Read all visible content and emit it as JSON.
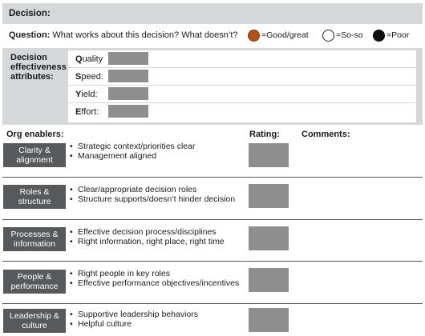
{
  "decision": {
    "label": "Decision:"
  },
  "question": {
    "label": "Question:",
    "text": " What works about this decision? What doesn’t?"
  },
  "legend": [
    {
      "icon": "filled-brown-circle",
      "color": "#b0521d",
      "label": "=Good/great"
    },
    {
      "icon": "empty-circle",
      "color": "#ffffff",
      "label": "=So-so"
    },
    {
      "icon": "filled-black-circle",
      "color": "#111111",
      "label": "=Poor"
    }
  ],
  "attributes": {
    "title": "Decision effectiveness attributes:",
    "items": [
      {
        "first": "Q",
        "rest": "uality"
      },
      {
        "first": "S",
        "rest": "peed:"
      },
      {
        "first": "Y",
        "rest": "ield:"
      },
      {
        "first": "E",
        "rest": "ffort:"
      }
    ]
  },
  "columns": {
    "enablers": "Org enablers:",
    "rating": "Rating:",
    "comments": "Comments:"
  },
  "enablers": [
    {
      "title": "Clarity & alignment",
      "bullets": [
        "Strategic context/priorities clear",
        "Management aligned"
      ]
    },
    {
      "title": "Roles & structure",
      "bullets": [
        "Clear/appropriate decision roles",
        "Structure supports/doesn’t hinder decision"
      ]
    },
    {
      "title": "Processes & information",
      "bullets": [
        "Effective decision process/disciplines",
        "Right information, right place, right time"
      ]
    },
    {
      "title": "People & performance",
      "bullets": [
        "Right people in key roles",
        "Effective performance objectives/incentives"
      ]
    },
    {
      "title": "Leadership & culture",
      "bullets": [
        "Supportive leadership behaviors",
        "Helpful culture"
      ]
    }
  ],
  "colors": {
    "panel": "#d6d7d9",
    "tag": "#58595b",
    "swatch": "#8e8e8e"
  }
}
